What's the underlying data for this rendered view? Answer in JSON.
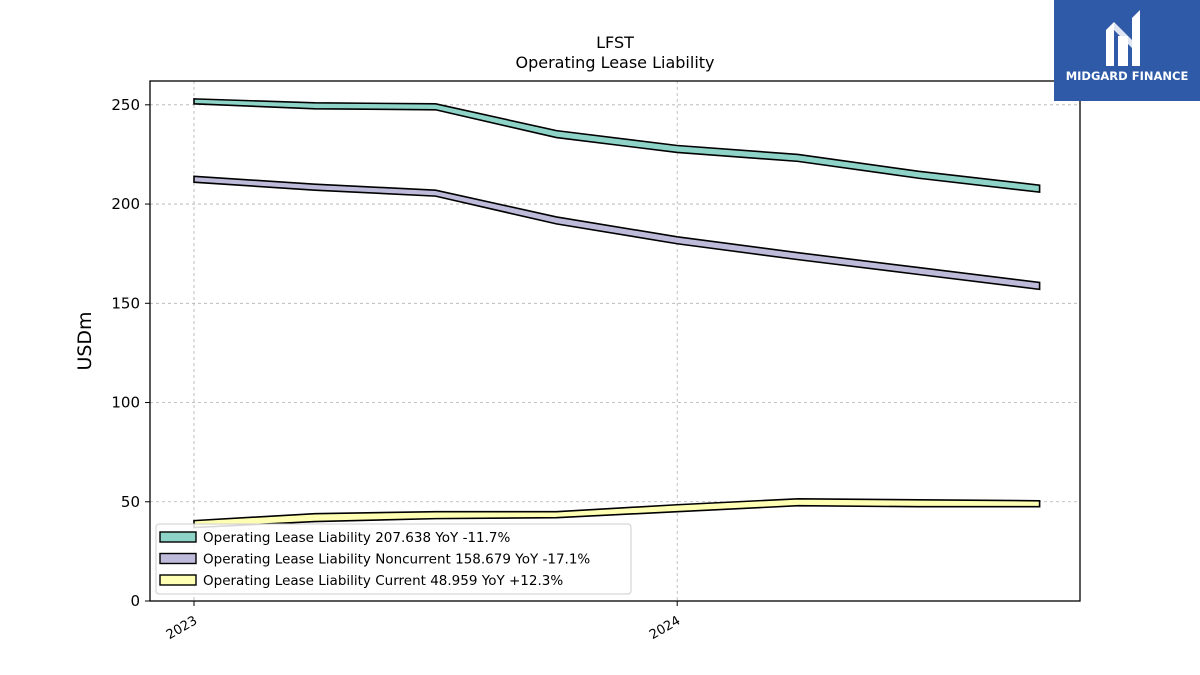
{
  "brand": {
    "name": "MIDGARD FINANCE",
    "color": "#2e5aa8"
  },
  "chart_data": {
    "type": "area",
    "title": "LFST",
    "subtitle": "Operating Lease Liability",
    "ylabel": "USDm",
    "xlabel": "",
    "ylim": [
      0,
      262
    ],
    "yticks": [
      0,
      50,
      100,
      150,
      200,
      250
    ],
    "xticks": [
      {
        "label": "2023",
        "x": 0
      },
      {
        "label": "2024",
        "x": 4
      }
    ],
    "grid": true,
    "legend_position": "lower-left",
    "x": [
      0,
      1,
      2,
      3,
      4,
      5,
      6,
      7
    ],
    "series": [
      {
        "name": "Operating Lease Liability",
        "legend_label": "Operating Lease Liability  207.638 YoY -11.7%",
        "color": "#8dd3c7",
        "lower": [
          250.5,
          248.0,
          247.5,
          233.5,
          226.0,
          221.5,
          213.0,
          206.0
        ],
        "upper": [
          253.0,
          251.0,
          250.5,
          237.0,
          229.5,
          225.0,
          216.5,
          209.5
        ]
      },
      {
        "name": "Operating Lease Liability Noncurrent",
        "legend_label": "Operating Lease Liability Noncurrent  158.679 YoY -17.1%",
        "color": "#bebada",
        "lower": [
          211.0,
          207.0,
          204.0,
          190.0,
          180.0,
          172.0,
          164.5,
          157.0
        ],
        "upper": [
          214.0,
          210.0,
          207.0,
          193.5,
          183.5,
          175.5,
          168.0,
          160.5
        ]
      },
      {
        "name": "Operating Lease Liability Current",
        "legend_label": "Operating Lease Liability Current  48.959 YoY +12.3%",
        "color": "#ffffb3",
        "lower": [
          37.0,
          40.0,
          41.5,
          42.0,
          45.0,
          48.0,
          47.5,
          47.5
        ],
        "upper": [
          40.5,
          44.0,
          45.0,
          45.0,
          48.5,
          51.5,
          51.0,
          50.5
        ]
      }
    ]
  }
}
